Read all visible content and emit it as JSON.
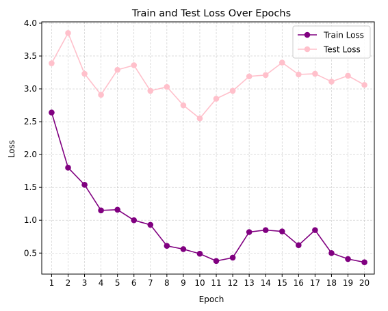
{
  "chart_data": {
    "type": "line",
    "title": "Train and Test Loss Over Epochs",
    "xlabel": "Epoch",
    "ylabel": "Loss",
    "x": [
      1,
      2,
      3,
      4,
      5,
      6,
      7,
      8,
      9,
      10,
      11,
      12,
      13,
      14,
      15,
      16,
      17,
      18,
      19,
      20
    ],
    "xlim": [
      0.4,
      20.6
    ],
    "ylim": [
      0.18,
      4.02
    ],
    "yticks": [
      0.5,
      1.0,
      1.5,
      2.0,
      2.5,
      3.0,
      3.5,
      4.0
    ],
    "grid": true,
    "legend": "top-right",
    "series": [
      {
        "name": "Train Loss",
        "color": "#800080",
        "marker": "circle",
        "values": [
          2.64,
          1.8,
          1.54,
          1.15,
          1.16,
          1.0,
          0.93,
          0.61,
          0.56,
          0.49,
          0.38,
          0.43,
          0.82,
          0.85,
          0.83,
          0.62,
          0.85,
          0.5,
          0.41,
          0.36
        ]
      },
      {
        "name": "Test Loss",
        "color": "#FFC0CB",
        "marker": "circle",
        "values": [
          3.39,
          3.85,
          3.23,
          2.91,
          3.29,
          3.36,
          2.97,
          3.03,
          2.75,
          2.55,
          2.85,
          2.97,
          3.19,
          3.21,
          3.4,
          3.22,
          3.23,
          3.11,
          3.2,
          3.06
        ]
      }
    ]
  }
}
